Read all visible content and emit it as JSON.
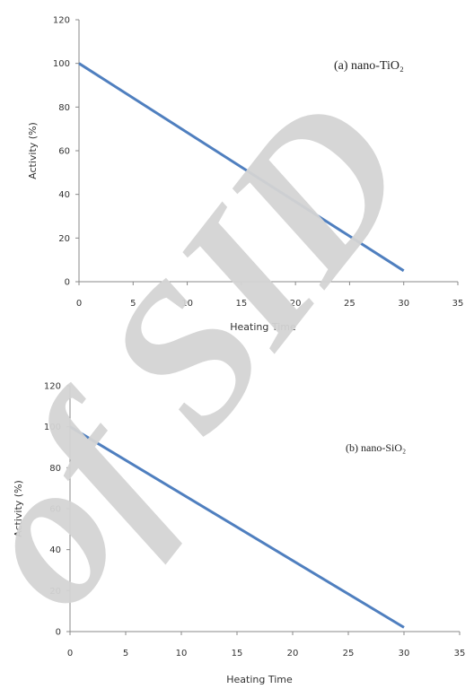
{
  "watermark": {
    "text": "of SID",
    "color": "#d4d4d4"
  },
  "colors": {
    "series": "#4f7fbf",
    "axis": "#888888"
  },
  "chart_data": [
    {
      "type": "line",
      "title": "(a) nano-TiO₂",
      "xlabel": "Heating Time",
      "ylabel": "Activity (%)",
      "xlim": [
        0,
        35
      ],
      "ylim": [
        0,
        120
      ],
      "xticks": [
        0,
        5,
        10,
        15,
        20,
        25,
        30,
        35
      ],
      "yticks": [
        0,
        20,
        40,
        60,
        80,
        100,
        120
      ],
      "grid": false,
      "series": [
        {
          "x": [
            0,
            30
          ],
          "y": [
            100,
            5
          ]
        }
      ]
    },
    {
      "type": "line",
      "title": "(b) nano-SiO₂",
      "xlabel": "Heating Time",
      "ylabel": "Activity (%)",
      "xlim": [
        0,
        35
      ],
      "ylim": [
        0,
        120
      ],
      "xticks": [
        0,
        5,
        10,
        15,
        20,
        25,
        30,
        35
      ],
      "yticks": [
        0,
        20,
        40,
        60,
        80,
        100,
        120
      ],
      "grid": false,
      "series": [
        {
          "x": [
            0,
            30
          ],
          "y": [
            100,
            2
          ]
        }
      ]
    }
  ]
}
